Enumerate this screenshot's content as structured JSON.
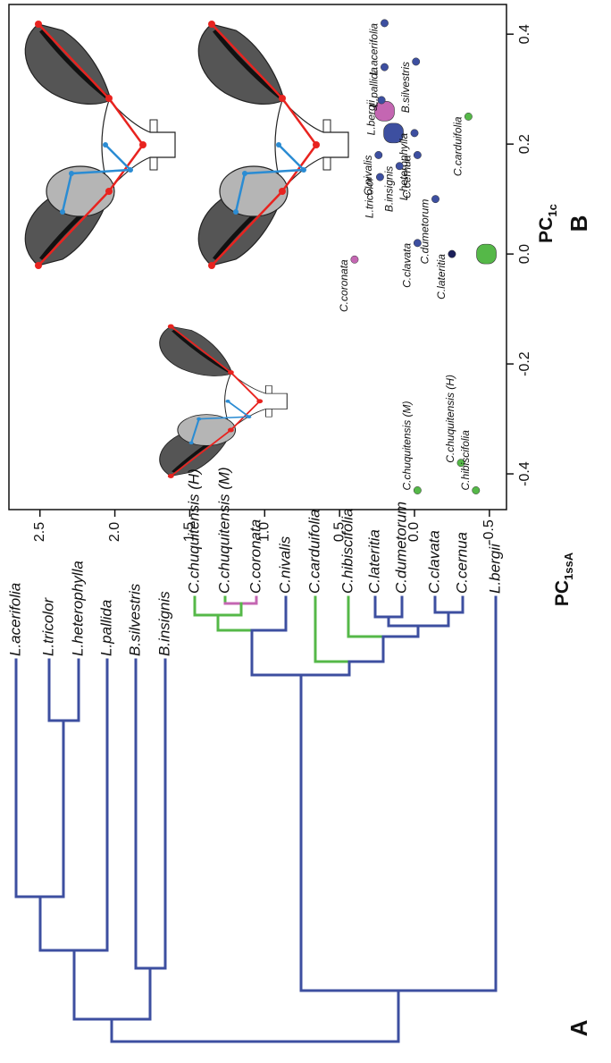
{
  "panel_a": {
    "label": "A",
    "tips": [
      "L.acerifolia",
      "L.tricolor",
      "L.heterophylla",
      "L.pallida",
      "B.silvestris",
      "B.insignis",
      "C.chuquitensis (H)",
      "C.chuquitensis (M)",
      "C.coronata",
      "C.nivalis",
      "C.carduifolia",
      "C.hibiscifolia",
      "C.lateritia",
      "C.dumetorum",
      "C.clavata",
      "C.cernua",
      "L.bergii"
    ]
  },
  "chart_data": {
    "type": "scatter",
    "panel_label": "B",
    "xlabel": "PC",
    "xlabel_sub": "1c",
    "ylabel": "PC",
    "ylabel_sub": "1ssA",
    "xlim": [
      -0.465,
      0.454
    ],
    "xticks": [
      -0.4,
      -0.2,
      {
        "value": 0,
        "label": "0.0"
      },
      0.2,
      0.4
    ],
    "ylim": [
      -0.614,
      2.707
    ],
    "yticks": [
      -0.5,
      {
        "value": 0,
        "label": "0.0"
      },
      0.5,
      {
        "value": 1,
        "label": "1.0"
      },
      1.5,
      {
        "value": 2,
        "label": "2.0"
      },
      2.5
    ],
    "labels": [
      "L.acerifolia",
      "L.pallida",
      "B.silvestris",
      "L.bergii",
      "L.heterophylla",
      "C.nivalis",
      "L.tricolor",
      "B.insignis",
      "C.cernua",
      "C.dumetorum",
      "C.clavata",
      "C.lateritia",
      "C.coronata",
      "C.carduifolia",
      "C.chuquitensis (M)",
      "C.chuquitensis (H)",
      "C.hibiscifolia"
    ],
    "x": [
      0.42,
      0.34,
      0.35,
      0.28,
      0.22,
      0.18,
      0.14,
      0.16,
      0.18,
      0.1,
      0.02,
      0.0,
      -0.01,
      0.25,
      -0.43,
      -0.38,
      -0.43
    ],
    "values": [
      0.2,
      0.2,
      -0.01,
      0.22,
      0.0,
      0.24,
      0.23,
      0.1,
      -0.02,
      -0.14,
      -0.02,
      -0.25,
      0.4,
      -0.36,
      -0.02,
      -0.31,
      -0.41
    ],
    "colors": [
      "#3d4fa0",
      "#3d4fa0",
      "#3d4fa0",
      "#3d4fa0",
      "#3d4fa0",
      "#3d4fa0",
      "#3d4fa0",
      "#3d4fa0",
      "#3d4fa0",
      "#3d4fa0",
      "#3d4fa0",
      "#1b1f5a",
      "#c466b2",
      "#55b848",
      "#55b848",
      "#55b848",
      "#55b848"
    ],
    "centroids": {
      "x": [
        0.22,
        0.26,
        0.0
      ],
      "values": [
        0.14,
        0.2,
        -0.48
      ],
      "colors": [
        "#3d4fa0",
        "#c466b2",
        "#55b848"
      ]
    }
  }
}
